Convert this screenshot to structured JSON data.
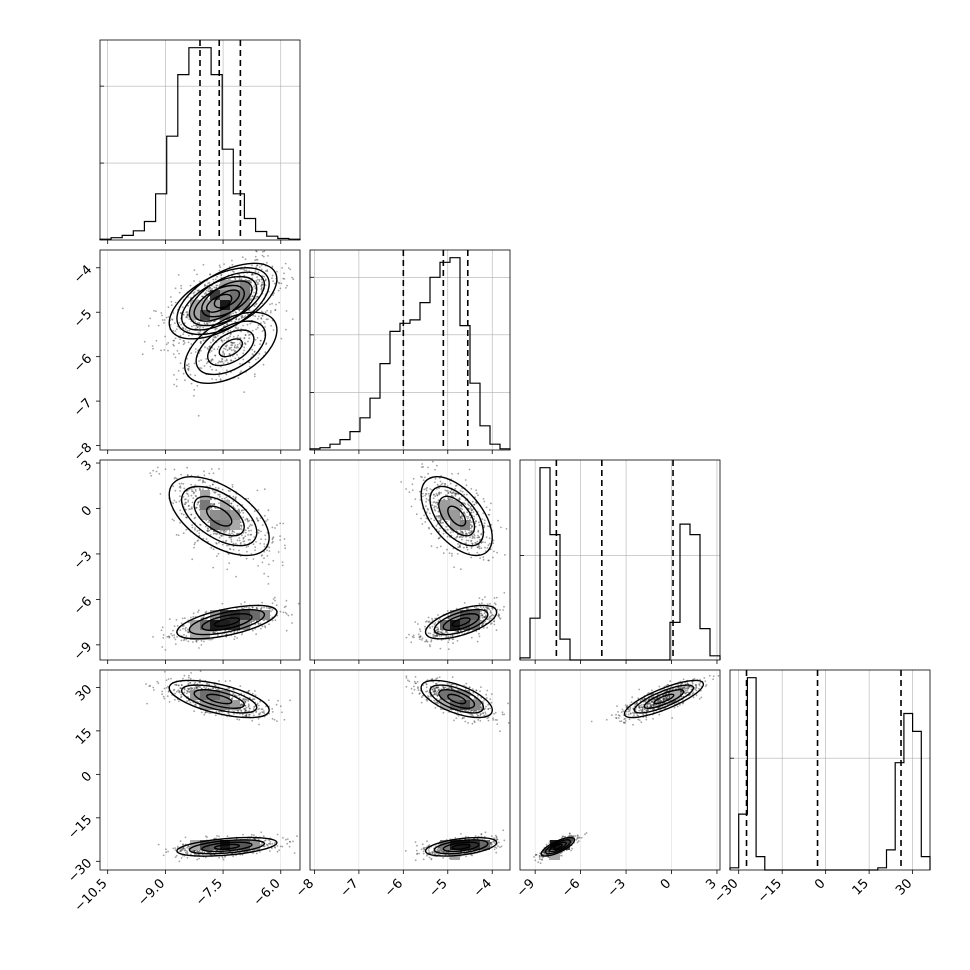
{
  "chart_data": {
    "type": "corner",
    "colors": {
      "ink": "#000000",
      "grid": "#b0b0b0",
      "scatter": "#333333"
    },
    "params": [
      {
        "range": [
          -10.7,
          -5.5
        ],
        "ticks": [
          -10.5,
          -9.0,
          -7.5,
          -6.0
        ],
        "tick_labels": [
          "−10.5",
          "−9.0",
          "−7.5",
          "−6.0"
        ],
        "quantiles": [
          -8.1,
          -7.6,
          -7.05
        ],
        "hist_counts": [
          1,
          3,
          6,
          12,
          24,
          60,
          135,
          215,
          250,
          250,
          215,
          118,
          60,
          28,
          11,
          5,
          2,
          1
        ]
      },
      {
        "range": [
          -8.1,
          -3.6
        ],
        "ticks": [
          -8,
          -7,
          -6,
          -5,
          -4
        ],
        "tick_labels": [
          "−8",
          "−7",
          "−6",
          "−5",
          "−4"
        ],
        "quantiles": [
          -6.0,
          -5.1,
          -4.55
        ],
        "hist_counts": [
          1,
          2,
          5,
          9,
          16,
          28,
          45,
          75,
          103,
          110,
          113,
          128,
          150,
          163,
          167,
          108,
          58,
          21,
          5,
          1
        ]
      },
      {
        "range": [
          -10.0,
          3.2
        ],
        "ticks": [
          -9,
          -6,
          -3,
          0,
          3
        ],
        "tick_labels": [
          "−9",
          "−6",
          "−3",
          "0",
          "3"
        ],
        "quantiles": [
          -7.6,
          -4.6,
          0.1
        ],
        "hist_counts": [
          1,
          20,
          92,
          60,
          10,
          0,
          0,
          0,
          0,
          0,
          0,
          0,
          0,
          0,
          0,
          18,
          65,
          60,
          15,
          2
        ]
      },
      {
        "range": [
          -33,
          36
        ],
        "ticks": [
          -30,
          -15,
          0,
          15,
          30
        ],
        "tick_labels": [
          "−30",
          "−15",
          "0",
          "15",
          "30"
        ],
        "quantiles": [
          -27.3,
          -2.8,
          26.0
        ],
        "hist_counts": [
          1,
          25,
          86,
          6,
          0,
          0,
          0,
          0,
          0,
          0,
          0,
          0,
          0,
          0,
          0,
          0,
          0,
          1,
          9,
          48,
          70,
          62,
          6
        ]
      }
    ],
    "modes": [
      {
        "weight": 0.5,
        "mean": [
          -7.6,
          -4.8,
          -0.5,
          26.0
        ],
        "sd": [
          0.65,
          0.4,
          1.3,
          3.2
        ],
        "corr": [
          [
            1.0,
            0.55,
            -0.55,
            -0.6
          ],
          [
            0.55,
            1.0,
            -0.55,
            -0.6
          ],
          [
            -0.55,
            -0.55,
            1.0,
            0.8
          ],
          [
            -0.6,
            -0.6,
            0.8,
            1.0
          ]
        ]
      },
      {
        "weight": 0.5,
        "mean": [
          -7.4,
          -4.7,
          -7.5,
          -25.0
        ],
        "sd": [
          0.65,
          0.4,
          0.55,
          1.6
        ],
        "corr": [
          [
            1.0,
            0.55,
            0.6,
            0.45
          ],
          [
            0.55,
            1.0,
            0.6,
            0.45
          ],
          [
            0.6,
            0.6,
            1.0,
            0.75
          ],
          [
            0.45,
            0.45,
            0.75,
            1.0
          ]
        ]
      },
      {
        "weight": 0.3,
        "mean": [
          -7.3,
          -5.8,
          0.0,
          0.0
        ],
        "sd": [
          0.6,
          0.4,
          99,
          99
        ],
        "corr": [
          [
            1.0,
            0.5,
            0,
            0
          ],
          [
            0.5,
            1.0,
            0,
            0
          ],
          [
            0,
            0,
            1,
            0
          ],
          [
            0,
            0,
            0,
            1
          ]
        ]
      }
    ]
  }
}
